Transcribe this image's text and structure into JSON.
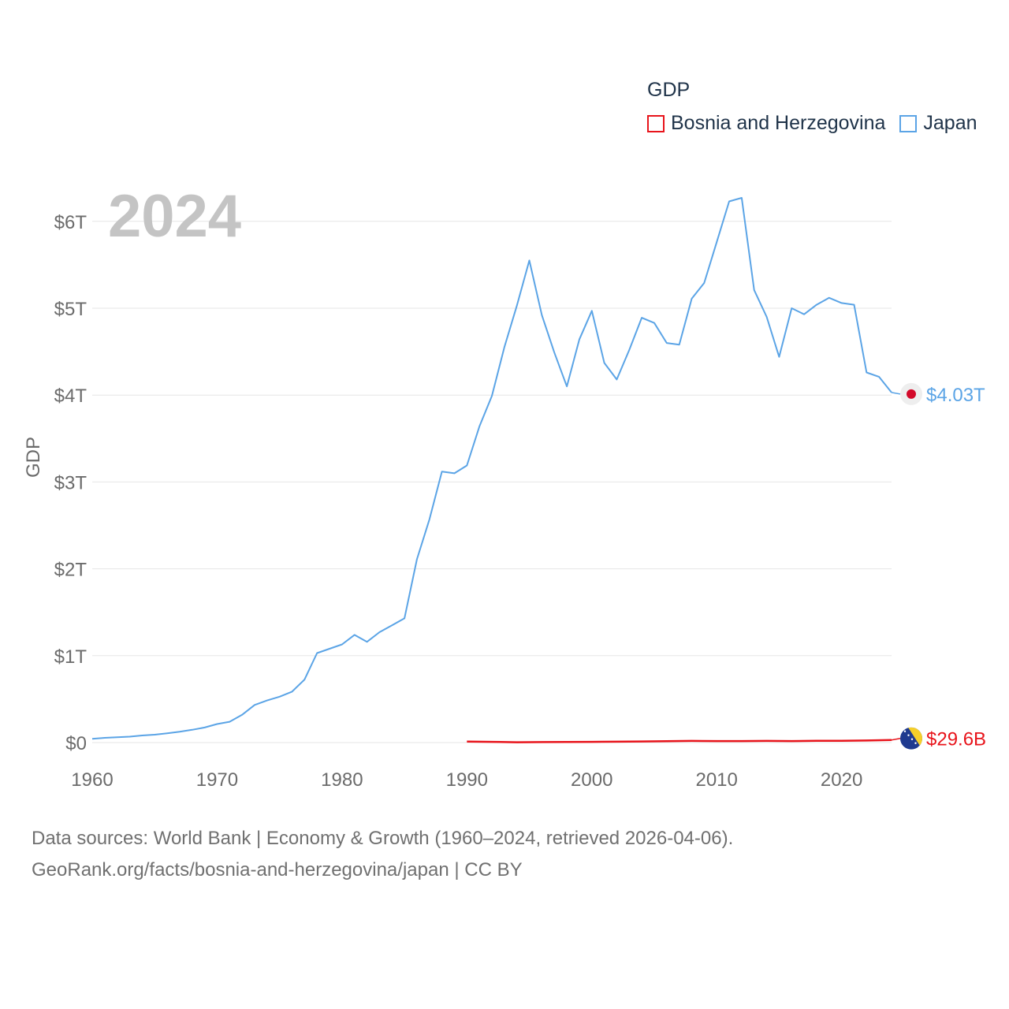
{
  "chart_data": {
    "type": "line",
    "year_label": "2024",
    "ylabel": "GDP",
    "xlim": [
      1960,
      2024
    ],
    "ylim": [
      0,
      6.5
    ],
    "yunit": "trillion USD",
    "y_ticks": [
      0,
      1,
      2,
      3,
      4,
      5,
      6
    ],
    "y_tick_labels": [
      "$0",
      "$1T",
      "$2T",
      "$3T",
      "$4T",
      "$5T",
      "$6T"
    ],
    "x_ticks": [
      1960,
      1970,
      1980,
      1990,
      2000,
      2010,
      2020
    ],
    "x_tick_labels": [
      "1960",
      "1970",
      "1980",
      "1990",
      "2000",
      "2010",
      "2020"
    ],
    "legend": {
      "title": "GDP",
      "placement": "top-right"
    },
    "series": [
      {
        "name": "Bosnia and Herzegovina",
        "color": "#e8141b",
        "end_label": "$29.6B",
        "flag": "bosnia-flag",
        "x": [
          1990,
          1992,
          1994,
          1996,
          1998,
          2000,
          2002,
          2004,
          2006,
          2008,
          2010,
          2012,
          2014,
          2016,
          2018,
          2020,
          2022,
          2024
        ],
        "values": [
          0.011,
          0.008,
          0.004,
          0.005,
          0.006,
          0.008,
          0.01,
          0.013,
          0.016,
          0.019,
          0.017,
          0.017,
          0.019,
          0.017,
          0.02,
          0.02,
          0.024,
          0.0296
        ]
      },
      {
        "name": "Japan",
        "color": "#5ba4e6",
        "end_label": "$4.03T",
        "flag": "japan-flag",
        "x": [
          1960,
          1961,
          1962,
          1963,
          1964,
          1965,
          1966,
          1967,
          1968,
          1969,
          1970,
          1971,
          1972,
          1973,
          1974,
          1975,
          1976,
          1977,
          1978,
          1979,
          1980,
          1981,
          1982,
          1983,
          1984,
          1985,
          1986,
          1987,
          1988,
          1989,
          1990,
          1991,
          1992,
          1993,
          1994,
          1995,
          1996,
          1997,
          1998,
          1999,
          2000,
          2001,
          2002,
          2003,
          2004,
          2005,
          2006,
          2007,
          2008,
          2009,
          2010,
          2011,
          2012,
          2013,
          2014,
          2015,
          2016,
          2017,
          2018,
          2019,
          2020,
          2021,
          2022,
          2023,
          2024
        ],
        "values": [
          0.044,
          0.054,
          0.061,
          0.068,
          0.082,
          0.091,
          0.106,
          0.124,
          0.147,
          0.173,
          0.213,
          0.24,
          0.319,
          0.433,
          0.485,
          0.528,
          0.586,
          0.725,
          1.03,
          1.08,
          1.13,
          1.24,
          1.16,
          1.27,
          1.35,
          1.43,
          2.11,
          2.57,
          3.12,
          3.1,
          3.19,
          3.64,
          3.99,
          4.55,
          5.03,
          5.55,
          4.92,
          4.49,
          4.1,
          4.64,
          4.97,
          4.37,
          4.18,
          4.52,
          4.89,
          4.83,
          4.6,
          4.58,
          5.11,
          5.29,
          5.76,
          6.23,
          6.27,
          5.21,
          4.9,
          4.44,
          5.0,
          4.93,
          5.04,
          5.12,
          5.06,
          5.04,
          4.26,
          4.21,
          4.03
        ]
      }
    ]
  },
  "footer": {
    "sources": "Data sources: World Bank | Economy & Growth (1960–2024, retrieved 2026-04-06).",
    "attribution": "GeoRank.org/facts/bosnia-and-herzegovina/japan | CC BY"
  }
}
